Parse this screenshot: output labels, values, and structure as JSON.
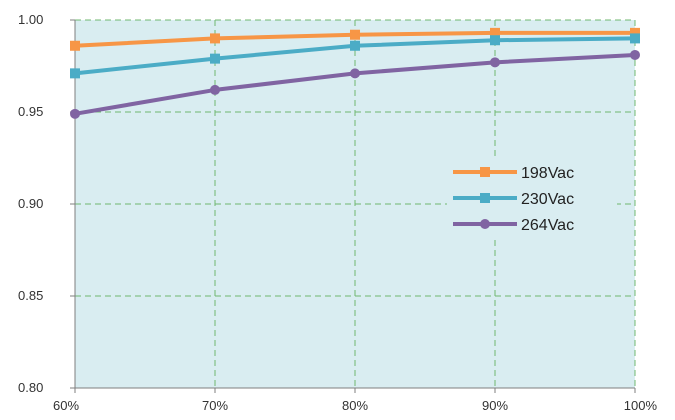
{
  "chart_data": {
    "type": "line",
    "title": "",
    "xlabel": "",
    "ylabel": "",
    "categories": [
      "60%",
      "70%",
      "80%",
      "90%",
      "100%"
    ],
    "ylim": [
      0.8,
      1.0
    ],
    "yticks": [
      "0.80",
      "0.85",
      "0.90",
      "0.95",
      "1.00"
    ],
    "grid": true,
    "legend_position": "right",
    "plot_background": "#d9edf1",
    "grid_color": "#70b870",
    "series": [
      {
        "name": "198Vac",
        "color": "#f79646",
        "marker": "square",
        "values": [
          0.986,
          0.99,
          0.992,
          0.993,
          0.993
        ]
      },
      {
        "name": "230Vac",
        "color": "#4bacc6",
        "marker": "square",
        "values": [
          0.971,
          0.979,
          0.986,
          0.989,
          0.99
        ]
      },
      {
        "name": "264Vac",
        "color": "#8064a2",
        "marker": "circle",
        "values": [
          0.949,
          0.962,
          0.971,
          0.977,
          0.981
        ]
      }
    ]
  }
}
